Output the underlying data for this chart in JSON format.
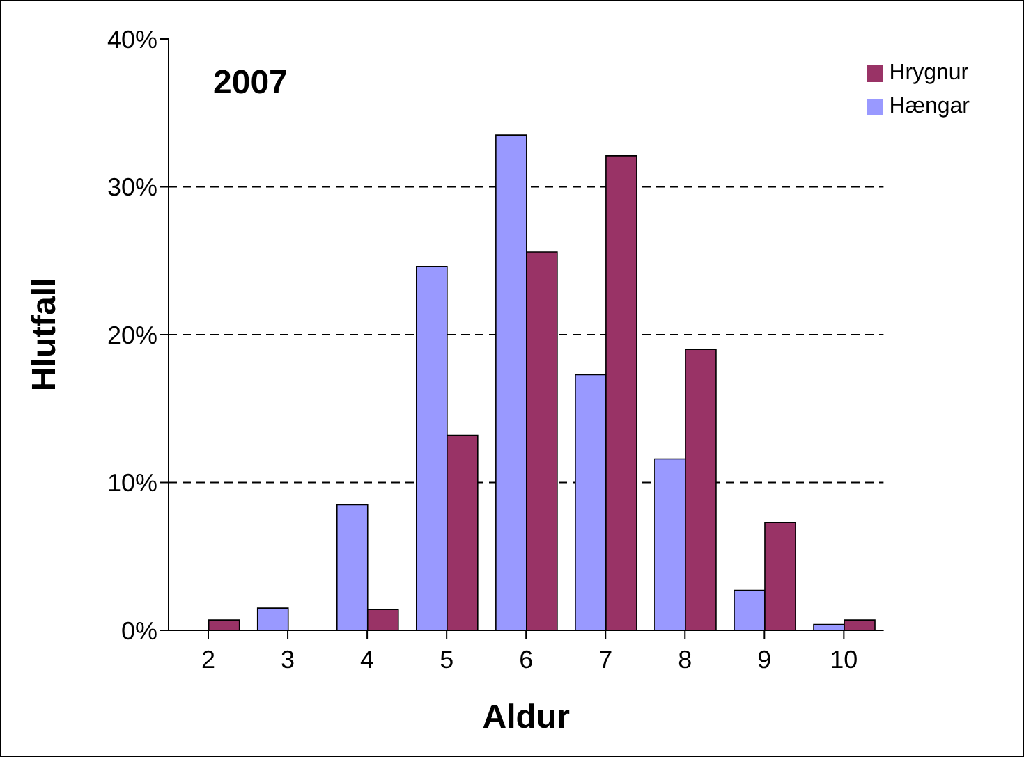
{
  "chart_data": {
    "type": "bar",
    "title": "2007",
    "xlabel": "Aldur",
    "ylabel": "Hlutfall",
    "categories": [
      "2",
      "3",
      "4",
      "5",
      "6",
      "7",
      "8",
      "9",
      "10"
    ],
    "series": [
      {
        "name": "Hængar",
        "color": "#9999ff",
        "values": [
          0,
          1.5,
          8.5,
          24.6,
          33.5,
          17.3,
          11.6,
          2.7,
          0.4
        ]
      },
      {
        "name": "Hrygnur",
        "color": "#993366",
        "values": [
          0.7,
          0,
          1.4,
          13.2,
          25.6,
          32.1,
          19.0,
          7.3,
          0.7
        ]
      }
    ],
    "ylim": [
      0,
      40
    ],
    "yticks": [
      {
        "value": 0,
        "label": "0%"
      },
      {
        "value": 10,
        "label": "10%"
      },
      {
        "value": 20,
        "label": "20%"
      },
      {
        "value": 30,
        "label": "30%"
      },
      {
        "value": 40,
        "label": "40%"
      }
    ],
    "grid": "y",
    "legend": "top right"
  }
}
